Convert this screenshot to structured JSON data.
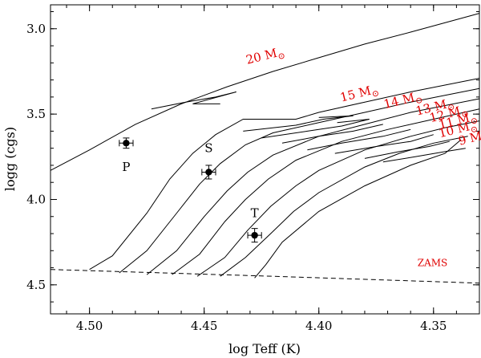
{
  "chart_data": {
    "type": "line",
    "title": "",
    "xlabel": "log Teff (K)",
    "ylabel": "logg (cgs)",
    "xlim": [
      4.517,
      4.33
    ],
    "ylim": [
      4.67,
      2.86
    ],
    "x_ticks": [
      "4.50",
      "4.45",
      "4.40",
      "4.35"
    ],
    "x_tick_values": [
      4.5,
      4.45,
      4.4,
      4.35
    ],
    "y_ticks": [
      "3.0",
      "3.5",
      "4.0",
      "4.5"
    ],
    "y_tick_values": [
      3.0,
      3.5,
      4.0,
      4.5
    ],
    "zams": {
      "label": "ZAMS",
      "points": [
        [
          4.517,
          4.41
        ],
        [
          4.42,
          4.45
        ],
        [
          4.33,
          4.49
        ]
      ]
    },
    "series": [
      {
        "name": "20",
        "label": "20 M",
        "symbol": "⊙",
        "label_at": [
          4.423,
          3.18
        ],
        "label_rot": -14,
        "points": [
          [
            4.517,
            3.83
          ],
          [
            4.5,
            3.71
          ],
          [
            4.48,
            3.56
          ],
          [
            4.46,
            3.44
          ],
          [
            4.44,
            3.34
          ],
          [
            4.42,
            3.25
          ],
          [
            4.4,
            3.17
          ],
          [
            4.38,
            3.09
          ],
          [
            4.36,
            3.02
          ],
          [
            4.33,
            2.91
          ]
        ]
      },
      {
        "name": "15",
        "label": "15 M",
        "symbol": "⊙",
        "label_at": [
          4.382,
          3.4
        ],
        "label_rot": -14,
        "points": [
          [
            4.5,
            4.41
          ],
          [
            4.49,
            4.33
          ],
          [
            4.475,
            4.08
          ],
          [
            4.465,
            3.88
          ],
          [
            4.455,
            3.73
          ],
          [
            4.445,
            3.62
          ],
          [
            4.433,
            3.53
          ],
          [
            4.41,
            3.53
          ],
          [
            4.4,
            3.49
          ],
          [
            4.38,
            3.43
          ],
          [
            4.36,
            3.37
          ],
          [
            4.33,
            3.29
          ]
        ]
      },
      {
        "name": "14",
        "label": "14 M",
        "symbol": "⊙",
        "label_at": [
          4.363,
          3.44
        ],
        "label_rot": -14,
        "points": [
          [
            4.487,
            4.43
          ],
          [
            4.475,
            4.3
          ],
          [
            4.462,
            4.08
          ],
          [
            4.452,
            3.91
          ],
          [
            4.443,
            3.79
          ],
          [
            4.432,
            3.68
          ],
          [
            4.42,
            3.61
          ],
          [
            4.4,
            3.55
          ],
          [
            4.38,
            3.49
          ],
          [
            4.36,
            3.43
          ],
          [
            4.33,
            3.35
          ]
        ]
      },
      {
        "name": "13",
        "label": "13 M",
        "symbol": "⊙",
        "label_at": [
          4.349,
          3.48
        ],
        "label_rot": -14,
        "points": [
          [
            4.475,
            4.44
          ],
          [
            4.462,
            4.3
          ],
          [
            4.45,
            4.1
          ],
          [
            4.44,
            3.95
          ],
          [
            4.431,
            3.84
          ],
          [
            4.42,
            3.74
          ],
          [
            4.4,
            3.63
          ],
          [
            4.38,
            3.56
          ],
          [
            4.36,
            3.49
          ],
          [
            4.33,
            3.41
          ]
        ]
      },
      {
        "name": "12",
        "label": "12 M",
        "symbol": "⊙",
        "label_at": [
          4.343,
          3.52
        ],
        "label_rot": -14,
        "points": [
          [
            4.464,
            4.44
          ],
          [
            4.452,
            4.32
          ],
          [
            4.441,
            4.13
          ],
          [
            4.432,
            4.0
          ],
          [
            4.422,
            3.88
          ],
          [
            4.41,
            3.77
          ],
          [
            4.39,
            3.66
          ],
          [
            4.37,
            3.59
          ],
          [
            4.35,
            3.53
          ],
          [
            4.33,
            3.47
          ]
        ]
      },
      {
        "name": "11",
        "label": "11 M",
        "symbol": "⊙",
        "label_at": [
          4.339,
          3.56
        ],
        "label_rot": -14,
        "points": [
          [
            4.453,
            4.45
          ],
          [
            4.441,
            4.34
          ],
          [
            4.431,
            4.18
          ],
          [
            4.421,
            4.04
          ],
          [
            4.41,
            3.92
          ],
          [
            4.4,
            3.83
          ],
          [
            4.38,
            3.71
          ],
          [
            4.36,
            3.63
          ],
          [
            4.345,
            3.58
          ],
          [
            4.33,
            3.54
          ]
        ]
      },
      {
        "name": "10",
        "label": "10 M",
        "symbol": "⊙",
        "label_at": [
          4.339,
          3.61
        ],
        "label_rot": -14,
        "points": [
          [
            4.443,
            4.45
          ],
          [
            4.432,
            4.34
          ],
          [
            4.421,
            4.2
          ],
          [
            4.411,
            4.07
          ],
          [
            4.4,
            3.96
          ],
          [
            4.38,
            3.81
          ],
          [
            4.365,
            3.73
          ],
          [
            4.35,
            3.67
          ],
          [
            4.335,
            3.63
          ]
        ]
      },
      {
        "name": "9",
        "label": "9 M",
        "symbol": "⊙",
        "label_at": [
          4.332,
          3.66
        ],
        "label_rot": -14,
        "points": [
          [
            4.428,
            4.46
          ],
          [
            4.423,
            4.38
          ],
          [
            4.416,
            4.25
          ],
          [
            4.4,
            4.07
          ],
          [
            4.38,
            3.92
          ],
          [
            4.36,
            3.8
          ],
          [
            4.345,
            3.73
          ],
          [
            4.338,
            3.65
          ]
        ]
      }
    ],
    "loops": [
      {
        "name": "20-loop",
        "points": [
          [
            4.473,
            3.47
          ],
          [
            4.458,
            3.43
          ],
          [
            4.445,
            3.4
          ],
          [
            4.436,
            3.37
          ],
          [
            4.455,
            3.44
          ],
          [
            4.443,
            3.44
          ]
        ]
      },
      {
        "name": "15-loop",
        "points": [
          [
            4.433,
            3.6
          ],
          [
            4.41,
            3.565
          ],
          [
            4.398,
            3.53
          ],
          [
            4.385,
            3.51
          ],
          [
            4.4,
            3.52
          ]
        ]
      },
      {
        "name": "14-loop",
        "points": [
          [
            4.425,
            3.64
          ],
          [
            4.405,
            3.6
          ],
          [
            4.39,
            3.57
          ],
          [
            4.378,
            3.53
          ],
          [
            4.392,
            3.55
          ]
        ]
      },
      {
        "name": "13-loop",
        "points": [
          [
            4.416,
            3.67
          ],
          [
            4.4,
            3.63
          ],
          [
            4.385,
            3.6
          ],
          [
            4.372,
            3.56
          ]
        ]
      },
      {
        "name": "12-loop",
        "points": [
          [
            4.405,
            3.71
          ],
          [
            4.39,
            3.67
          ],
          [
            4.372,
            3.63
          ],
          [
            4.36,
            3.59
          ]
        ]
      },
      {
        "name": "11-loop",
        "points": [
          [
            4.393,
            3.73
          ],
          [
            4.375,
            3.69
          ],
          [
            4.36,
            3.66
          ],
          [
            4.35,
            3.62
          ]
        ]
      },
      {
        "name": "10-loop",
        "points": [
          [
            4.38,
            3.76
          ],
          [
            4.365,
            3.72
          ],
          [
            4.352,
            3.69
          ],
          [
            4.343,
            3.66
          ]
        ]
      },
      {
        "name": "9-loop",
        "points": [
          [
            4.372,
            3.78
          ],
          [
            4.358,
            3.75
          ],
          [
            4.345,
            3.72
          ],
          [
            4.336,
            3.7
          ]
        ]
      }
    ],
    "points": [
      {
        "name": "P",
        "x": 4.484,
        "y": 3.67,
        "xerr": 0.003,
        "yerr": 0.03,
        "label_at": [
          4.484,
          3.81
        ]
      },
      {
        "name": "S",
        "x": 4.448,
        "y": 3.84,
        "xerr": 0.003,
        "yerr": 0.04,
        "label_at": [
          4.448,
          3.7
        ]
      },
      {
        "name": "T",
        "x": 4.428,
        "y": 4.21,
        "xerr": 0.003,
        "yerr": 0.04,
        "label_at": [
          4.428,
          4.08
        ]
      }
    ]
  }
}
